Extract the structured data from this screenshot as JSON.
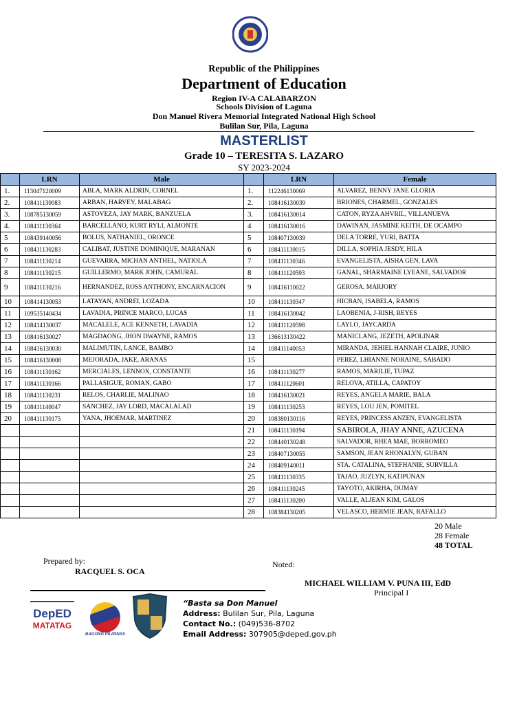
{
  "header": {
    "seal_text": "KAGAWARAN NG EDUKASYON - REPUBLIKA NG PILIPINAS",
    "republic": "Republic of the Philippines",
    "department": "Department of Education",
    "region": "Region IV-A CALABARZON",
    "division": "Schools Division of Laguna",
    "school": "Don Manuel Rivera Memorial Integrated National High School",
    "location": "Bulilan Sur, Pila, Laguna"
  },
  "doc": {
    "title": "MASTERLIST",
    "grade": "Grade 10 – TERESITA S. LAZARO",
    "sy": "SY 2023-2024"
  },
  "table": {
    "headers": {
      "lrn": "LRN",
      "male": "Male",
      "female": "Female"
    },
    "male": [
      [
        "1.",
        "113047120009",
        "ABLA, MARK ALDRIN, CORNEL"
      ],
      [
        "2.",
        "108411130083",
        "ARBAN, HARVEY, MALABAG"
      ],
      [
        "3.",
        "108785130059",
        "ASTOVEZA, JAY MARK, BANZUELA"
      ],
      [
        "4.",
        "108411130364",
        "BARCELLANO, KURT RYLI, ALMONTE"
      ],
      [
        "5",
        "108439140056",
        "BOLUS, NATHANIEL, ORONCE"
      ],
      [
        "6",
        "108411130283",
        "CALIBAT, JUSTINE DOMINIQUE, MARANAN"
      ],
      [
        "7",
        "108411130214",
        "GUEVARRA, MICHAN ANTHEL, NATIOLA"
      ],
      [
        "8",
        "108411130215",
        "GUILLERMO, MARK JOHN, CAMURAL"
      ],
      [
        "9",
        "108411130216",
        "HERNANDEZ, ROSS ANTHONY, ENCARNACION"
      ],
      [
        "10",
        "108414130053",
        "LATAYAN, ANDREI, LOZADA"
      ],
      [
        "11",
        "109535140434",
        "LAVADIA, PRINCE MARCO, LUCAS"
      ],
      [
        "12",
        "108414130037",
        "MACALELE, ACE KENNETH, LAVADIA"
      ],
      [
        "13",
        "108416130027",
        "MAGDAONG, JHON DWAYNE, RAMOS"
      ],
      [
        "14",
        "108416130030",
        "MALIMUTIN, LANCE, BAMBO"
      ],
      [
        "15",
        "108416130008",
        "MEJORADA, JAKE, ARANAS"
      ],
      [
        "16",
        "108411130162",
        "MERCIALES, LENNOX, CONSTANTE"
      ],
      [
        "17",
        "108411130166",
        "PALLASIGUE, ROMAN, GABO"
      ],
      [
        "18",
        "108411130231",
        "RELOS, CHARLIE, MALINAO"
      ],
      [
        "19",
        "108411140047",
        "SANCHEZ, JAY LORD, MACALALAD"
      ],
      [
        "20",
        "108411130175",
        "YANA, JHOEMAR, MARTINEZ"
      ]
    ],
    "female": [
      [
        "1.",
        "112246130069",
        "ALVAREZ, BENNY JANE GLORIA"
      ],
      [
        "2.",
        "108416130039",
        "BRIONES, CHARMEL, GONZALES"
      ],
      [
        "3.",
        "108416130014",
        "CATON, RYZA AHVRIL, VILLANUEVA"
      ],
      [
        "4",
        "108416130016",
        "DAWINAN, JASMINE KEITH, DE OCAMPO"
      ],
      [
        "5",
        "108407130039",
        "DELA TORRE, YURI, BATTA"
      ],
      [
        "6",
        "108411130015",
        "DILLA, SOPHIA JESDY, HILA"
      ],
      [
        "7",
        "108411130346",
        "EVANGELISTA, AISHA GEN, LAVA"
      ],
      [
        "8",
        "108411120593",
        "GANAL, SHARMAINE LYEANE, SALVADOR"
      ],
      [
        "9",
        "108416110022",
        "GEROSA, MARJORY"
      ],
      [
        "10",
        "108411130347",
        "HICBAN, ISABELA, RAMOS"
      ],
      [
        "11",
        "108416130042",
        "LAOBENIA, J-RISH, REYES"
      ],
      [
        "12",
        "108411120598",
        "LAYLO, JAYCARDA"
      ],
      [
        "13",
        "136613130422",
        "MANICLANG, JEZETH, APOLINAR"
      ],
      [
        "14",
        "108411140053",
        "MIRANDA, JEHIEL HANNAH CLAIRE, JUNIO"
      ],
      [
        "15",
        "",
        "PEREZ, LHIANNE NORAINE, SABADO"
      ],
      [
        "16",
        "108411130277",
        "RAMOS, MARILIE, TUPAZ"
      ],
      [
        "17",
        "108411120601",
        "RELOVA, ATILLA, CAPATOY"
      ],
      [
        "18",
        "108416130021",
        "REYES, ANGELA MARIE, BALA"
      ],
      [
        "19",
        "108411130253",
        "REYES, LOU JEN, POMITEL"
      ],
      [
        "20",
        "108380130116",
        "REYES, PRINCESS ANZEN, EVANGELISTA"
      ],
      [
        "21",
        "108411130194",
        "SABIROLA, JHAY ANNE, AZUCENA"
      ],
      [
        "22",
        "108440130248",
        "SALVADOR, RHEA MAE, BORROMEO"
      ],
      [
        "23",
        "108407130055",
        "SAMSON, JEAN RHONALYN, GUBAN"
      ],
      [
        "24",
        "108409140011",
        "STA. CATALINA, STEFHANIE, SURVILLA"
      ],
      [
        "25",
        "108411130335",
        "TAJAO, JUZLYN, KATIPUNAN"
      ],
      [
        "26",
        "108411130245",
        "TAYOTO, AKIRHA, DUMAY"
      ],
      [
        "27",
        "108411130200",
        "VALLE, ALJEAN KIM, GALOS"
      ],
      [
        "28",
        "108384130205",
        "VELASCO, HERMIE JEAN, RAFALLO"
      ]
    ]
  },
  "totals": {
    "male": "20 Male",
    "female": "28 Female",
    "total": "48 TOTAL"
  },
  "signatures": {
    "prepared_label": "Prepared by:",
    "prepared_name": "RACQUEL S. OCA",
    "noted_label": "Noted:",
    "noted_name": "MICHAEL WILLIAM V. PUNA III, EdD",
    "noted_title": "Principal I"
  },
  "footer": {
    "logos": {
      "deped": "DepED",
      "matatag": "MATATAG",
      "bagong": "BAGONG PILIPINAS"
    },
    "motto": "“Basta sa Don Manuel",
    "address_label": "Address:",
    "address": " Bulilan Sur, Pila, Laguna",
    "contact_label": "Contact No.:",
    "contact": " (049)536-8702",
    "email_label": "Email Address:",
    "email": " 307905@deped.gov.ph"
  },
  "colors": {
    "title": "#1f3f7a",
    "table_header": "#9ab8dd"
  }
}
